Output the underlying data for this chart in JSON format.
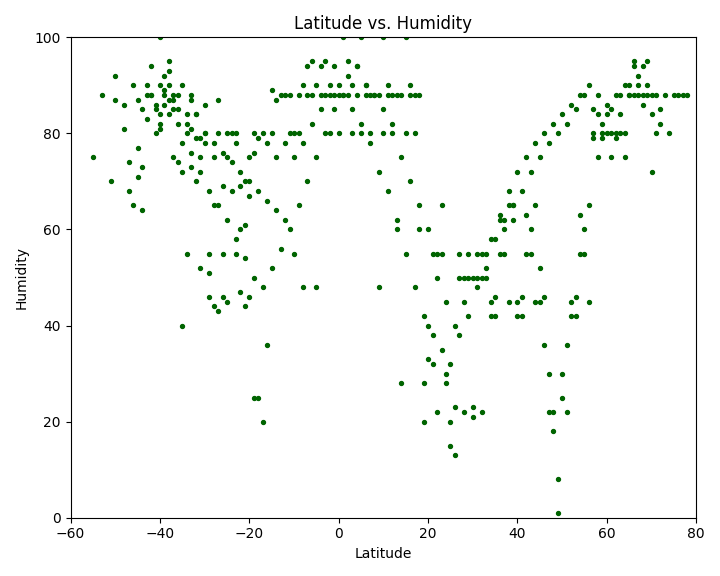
{
  "title": "Latitude vs. Humidity",
  "xlabel": "Latitude",
  "ylabel": "Humidity",
  "xlim": [
    -60,
    80
  ],
  "ylim": [
    0,
    100
  ],
  "xticks": [
    -60,
    -40,
    -20,
    0,
    20,
    40,
    60,
    80
  ],
  "yticks": [
    0,
    20,
    40,
    60,
    80,
    100
  ],
  "dot_color": "#006400",
  "dot_size": 8,
  "seed": 47,
  "points": [
    [
      -55,
      75
    ],
    [
      -53,
      88
    ],
    [
      -51,
      70
    ],
    [
      -50,
      87
    ],
    [
      -48,
      81
    ],
    [
      -47,
      68
    ],
    [
      -47,
      74
    ],
    [
      -46,
      65
    ],
    [
      -45,
      87
    ],
    [
      -45,
      71
    ],
    [
      -44,
      64
    ],
    [
      -44,
      73
    ],
    [
      -43,
      88
    ],
    [
      -43,
      90
    ],
    [
      -42,
      94
    ],
    [
      -42,
      88
    ],
    [
      -41,
      85
    ],
    [
      -41,
      80
    ],
    [
      -40,
      100
    ],
    [
      -40,
      84
    ],
    [
      -40,
      82
    ],
    [
      -40,
      81
    ],
    [
      -39,
      88
    ],
    [
      -39,
      86
    ],
    [
      -39,
      89
    ],
    [
      -38,
      95
    ],
    [
      -38,
      93
    ],
    [
      -38,
      90
    ],
    [
      -38,
      84
    ],
    [
      -37,
      87
    ],
    [
      -37,
      85
    ],
    [
      -37,
      75
    ],
    [
      -36,
      88
    ],
    [
      -36,
      82
    ],
    [
      -36,
      74
    ],
    [
      -35,
      72
    ],
    [
      -35,
      90
    ],
    [
      -35,
      40
    ],
    [
      -34,
      55
    ],
    [
      -34,
      84
    ],
    [
      -34,
      80
    ],
    [
      -33,
      87
    ],
    [
      -33,
      88
    ],
    [
      -33,
      81
    ],
    [
      -33,
      73
    ],
    [
      -32,
      84
    ],
    [
      -32,
      79
    ],
    [
      -32,
      70
    ],
    [
      -31,
      79
    ],
    [
      -31,
      75
    ],
    [
      -31,
      52
    ],
    [
      -30,
      86
    ],
    [
      -30,
      80
    ],
    [
      -30,
      78
    ],
    [
      -29,
      55
    ],
    [
      -29,
      51
    ],
    [
      -29,
      46
    ],
    [
      -28,
      75
    ],
    [
      -28,
      65
    ],
    [
      -28,
      44
    ],
    [
      -27,
      87
    ],
    [
      -27,
      80
    ],
    [
      -27,
      43
    ],
    [
      -26,
      69
    ],
    [
      -26,
      55
    ],
    [
      -26,
      46
    ],
    [
      -25,
      80
    ],
    [
      -25,
      75
    ],
    [
      -25,
      45
    ],
    [
      -24,
      80
    ],
    [
      -24,
      68
    ],
    [
      -23,
      80
    ],
    [
      -23,
      78
    ],
    [
      -23,
      55
    ],
    [
      -22,
      69
    ],
    [
      -22,
      60
    ],
    [
      -22,
      47
    ],
    [
      -21,
      70
    ],
    [
      -21,
      61
    ],
    [
      -21,
      44
    ],
    [
      -20,
      75
    ],
    [
      -20,
      67
    ],
    [
      -20,
      46
    ],
    [
      -19,
      80
    ],
    [
      -19,
      76
    ],
    [
      -19,
      25
    ],
    [
      -18,
      79
    ],
    [
      -18,
      25
    ],
    [
      -17,
      80
    ],
    [
      -17,
      20
    ],
    [
      -16,
      78
    ],
    [
      -16,
      36
    ],
    [
      -15,
      89
    ],
    [
      -15,
      80
    ],
    [
      -14,
      87
    ],
    [
      -14,
      75
    ],
    [
      -13,
      88
    ],
    [
      -12,
      88
    ],
    [
      -12,
      78
    ],
    [
      -11,
      88
    ],
    [
      -11,
      80
    ],
    [
      -10,
      80
    ],
    [
      -10,
      55
    ],
    [
      -9,
      88
    ],
    [
      -9,
      80
    ],
    [
      -8,
      90
    ],
    [
      -8,
      48
    ],
    [
      -7,
      94
    ],
    [
      -7,
      88
    ],
    [
      -6,
      95
    ],
    [
      -6,
      88
    ],
    [
      -5,
      90
    ],
    [
      -5,
      48
    ],
    [
      -4,
      94
    ],
    [
      -4,
      88
    ],
    [
      -3,
      95
    ],
    [
      -3,
      88
    ],
    [
      -2,
      90
    ],
    [
      -2,
      80
    ],
    [
      -1,
      94
    ],
    [
      -1,
      88
    ],
    [
      0,
      88
    ],
    [
      0,
      80
    ],
    [
      1,
      100
    ],
    [
      1,
      88
    ],
    [
      2,
      95
    ],
    [
      2,
      88
    ],
    [
      3,
      90
    ],
    [
      3,
      80
    ],
    [
      4,
      94
    ],
    [
      4,
      88
    ],
    [
      5,
      100
    ],
    [
      5,
      80
    ],
    [
      6,
      88
    ],
    [
      6,
      90
    ],
    [
      7,
      88
    ],
    [
      7,
      80
    ],
    [
      8,
      88
    ],
    [
      9,
      48
    ],
    [
      9,
      88
    ],
    [
      10,
      100
    ],
    [
      10,
      80
    ],
    [
      11,
      88
    ],
    [
      11,
      90
    ],
    [
      12,
      88
    ],
    [
      12,
      80
    ],
    [
      13,
      88
    ],
    [
      13,
      60
    ],
    [
      14,
      28
    ],
    [
      14,
      88
    ],
    [
      15,
      100
    ],
    [
      15,
      80
    ],
    [
      16,
      88
    ],
    [
      16,
      90
    ],
    [
      17,
      88
    ],
    [
      17,
      80
    ],
    [
      18,
      88
    ],
    [
      18,
      60
    ],
    [
      19,
      28
    ],
    [
      19,
      20
    ],
    [
      20,
      40
    ],
    [
      20,
      33
    ],
    [
      21,
      55
    ],
    [
      21,
      32
    ],
    [
      22,
      22
    ],
    [
      22,
      50
    ],
    [
      23,
      65
    ],
    [
      23,
      55
    ],
    [
      24,
      30
    ],
    [
      24,
      28
    ],
    [
      25,
      20
    ],
    [
      25,
      15
    ],
    [
      26,
      23
    ],
    [
      26,
      13
    ],
    [
      27,
      55
    ],
    [
      27,
      50
    ],
    [
      28,
      22
    ],
    [
      28,
      50
    ],
    [
      29,
      55
    ],
    [
      29,
      50
    ],
    [
      30,
      23
    ],
    [
      30,
      21
    ],
    [
      31,
      55
    ],
    [
      31,
      50
    ],
    [
      32,
      22
    ],
    [
      32,
      50
    ],
    [
      33,
      55
    ],
    [
      33,
      50
    ],
    [
      34,
      45
    ],
    [
      34,
      42
    ],
    [
      35,
      42
    ],
    [
      35,
      46
    ],
    [
      36,
      63
    ],
    [
      36,
      55
    ],
    [
      37,
      60
    ],
    [
      37,
      55
    ],
    [
      38,
      45
    ],
    [
      38,
      65
    ],
    [
      39,
      65
    ],
    [
      39,
      62
    ],
    [
      40,
      45
    ],
    [
      40,
      42
    ],
    [
      41,
      42
    ],
    [
      41,
      46
    ],
    [
      42,
      63
    ],
    [
      42,
      55
    ],
    [
      43,
      60
    ],
    [
      43,
      55
    ],
    [
      44,
      45
    ],
    [
      44,
      65
    ],
    [
      45,
      52
    ],
    [
      45,
      45
    ],
    [
      46,
      46
    ],
    [
      46,
      36
    ],
    [
      47,
      30
    ],
    [
      47,
      22
    ],
    [
      48,
      18
    ],
    [
      48,
      22
    ],
    [
      49,
      1
    ],
    [
      49,
      8
    ],
    [
      50,
      25
    ],
    [
      50,
      30
    ],
    [
      51,
      22
    ],
    [
      51,
      36
    ],
    [
      52,
      45
    ],
    [
      52,
      42
    ],
    [
      53,
      42
    ],
    [
      53,
      46
    ],
    [
      54,
      63
    ],
    [
      54,
      55
    ],
    [
      55,
      60
    ],
    [
      55,
      55
    ],
    [
      56,
      45
    ],
    [
      56,
      65
    ],
    [
      57,
      79
    ],
    [
      57,
      80
    ],
    [
      58,
      84
    ],
    [
      58,
      75
    ],
    [
      59,
      80
    ],
    [
      59,
      79
    ],
    [
      60,
      80
    ],
    [
      60,
      84
    ],
    [
      61,
      75
    ],
    [
      61,
      80
    ],
    [
      62,
      79
    ],
    [
      62,
      80
    ],
    [
      63,
      80
    ],
    [
      63,
      84
    ],
    [
      64,
      75
    ],
    [
      64,
      80
    ],
    [
      65,
      88
    ],
    [
      65,
      88
    ],
    [
      66,
      94
    ],
    [
      66,
      95
    ],
    [
      67,
      90
    ],
    [
      67,
      88
    ],
    [
      68,
      88
    ],
    [
      68,
      94
    ],
    [
      69,
      95
    ],
    [
      69,
      90
    ],
    [
      70,
      88
    ],
    [
      70,
      72
    ],
    [
      71,
      88
    ],
    [
      72,
      85
    ],
    [
      73,
      88
    ],
    [
      74,
      80
    ],
    [
      75,
      88
    ],
    [
      76,
      88
    ],
    [
      77,
      88
    ],
    [
      78,
      88
    ],
    [
      -50,
      92
    ],
    [
      -48,
      86
    ],
    [
      -46,
      90
    ],
    [
      -44,
      85
    ],
    [
      -42,
      88
    ],
    [
      -40,
      90
    ],
    [
      -38,
      87
    ],
    [
      -36,
      85
    ],
    [
      -34,
      82
    ],
    [
      -32,
      84
    ],
    [
      -30,
      80
    ],
    [
      -28,
      78
    ],
    [
      -26,
      76
    ],
    [
      -24,
      74
    ],
    [
      -22,
      72
    ],
    [
      -20,
      70
    ],
    [
      -18,
      68
    ],
    [
      -16,
      66
    ],
    [
      -14,
      64
    ],
    [
      -12,
      62
    ],
    [
      -10,
      75
    ],
    [
      -8,
      78
    ],
    [
      -6,
      82
    ],
    [
      -4,
      85
    ],
    [
      -2,
      88
    ],
    [
      0,
      90
    ],
    [
      2,
      92
    ],
    [
      4,
      94
    ],
    [
      6,
      90
    ],
    [
      8,
      88
    ],
    [
      10,
      85
    ],
    [
      12,
      82
    ],
    [
      14,
      75
    ],
    [
      16,
      70
    ],
    [
      18,
      65
    ],
    [
      20,
      60
    ],
    [
      22,
      55
    ],
    [
      24,
      45
    ],
    [
      26,
      40
    ],
    [
      28,
      45
    ],
    [
      30,
      50
    ],
    [
      32,
      55
    ],
    [
      34,
      58
    ],
    [
      36,
      62
    ],
    [
      38,
      68
    ],
    [
      40,
      72
    ],
    [
      42,
      75
    ],
    [
      44,
      78
    ],
    [
      46,
      80
    ],
    [
      48,
      82
    ],
    [
      50,
      84
    ],
    [
      52,
      86
    ],
    [
      54,
      88
    ],
    [
      56,
      90
    ],
    [
      58,
      88
    ],
    [
      60,
      86
    ],
    [
      62,
      88
    ],
    [
      64,
      90
    ],
    [
      66,
      88
    ],
    [
      68,
      86
    ],
    [
      70,
      84
    ],
    [
      72,
      82
    ],
    [
      -45,
      77
    ],
    [
      -43,
      83
    ],
    [
      -41,
      86
    ],
    [
      -39,
      92
    ],
    [
      -37,
      88
    ],
    [
      -35,
      78
    ],
    [
      -33,
      76
    ],
    [
      -31,
      72
    ],
    [
      -29,
      68
    ],
    [
      -27,
      65
    ],
    [
      -25,
      62
    ],
    [
      -23,
      58
    ],
    [
      -21,
      54
    ],
    [
      -19,
      50
    ],
    [
      -17,
      48
    ],
    [
      -15,
      52
    ],
    [
      -13,
      56
    ],
    [
      -11,
      60
    ],
    [
      -9,
      65
    ],
    [
      -7,
      70
    ],
    [
      -5,
      75
    ],
    [
      -3,
      80
    ],
    [
      -1,
      85
    ],
    [
      1,
      88
    ],
    [
      3,
      85
    ],
    [
      5,
      82
    ],
    [
      7,
      78
    ],
    [
      9,
      72
    ],
    [
      11,
      68
    ],
    [
      13,
      62
    ],
    [
      15,
      55
    ],
    [
      17,
      48
    ],
    [
      19,
      42
    ],
    [
      21,
      38
    ],
    [
      23,
      35
    ],
    [
      25,
      32
    ],
    [
      27,
      38
    ],
    [
      29,
      42
    ],
    [
      31,
      48
    ],
    [
      33,
      52
    ],
    [
      35,
      58
    ],
    [
      37,
      62
    ],
    [
      39,
      65
    ],
    [
      41,
      68
    ],
    [
      43,
      72
    ],
    [
      45,
      75
    ],
    [
      47,
      78
    ],
    [
      49,
      80
    ],
    [
      51,
      82
    ],
    [
      53,
      85
    ],
    [
      55,
      88
    ],
    [
      57,
      85
    ],
    [
      59,
      82
    ],
    [
      61,
      85
    ],
    [
      63,
      88
    ],
    [
      65,
      90
    ],
    [
      67,
      92
    ],
    [
      69,
      88
    ],
    [
      71,
      80
    ]
  ]
}
